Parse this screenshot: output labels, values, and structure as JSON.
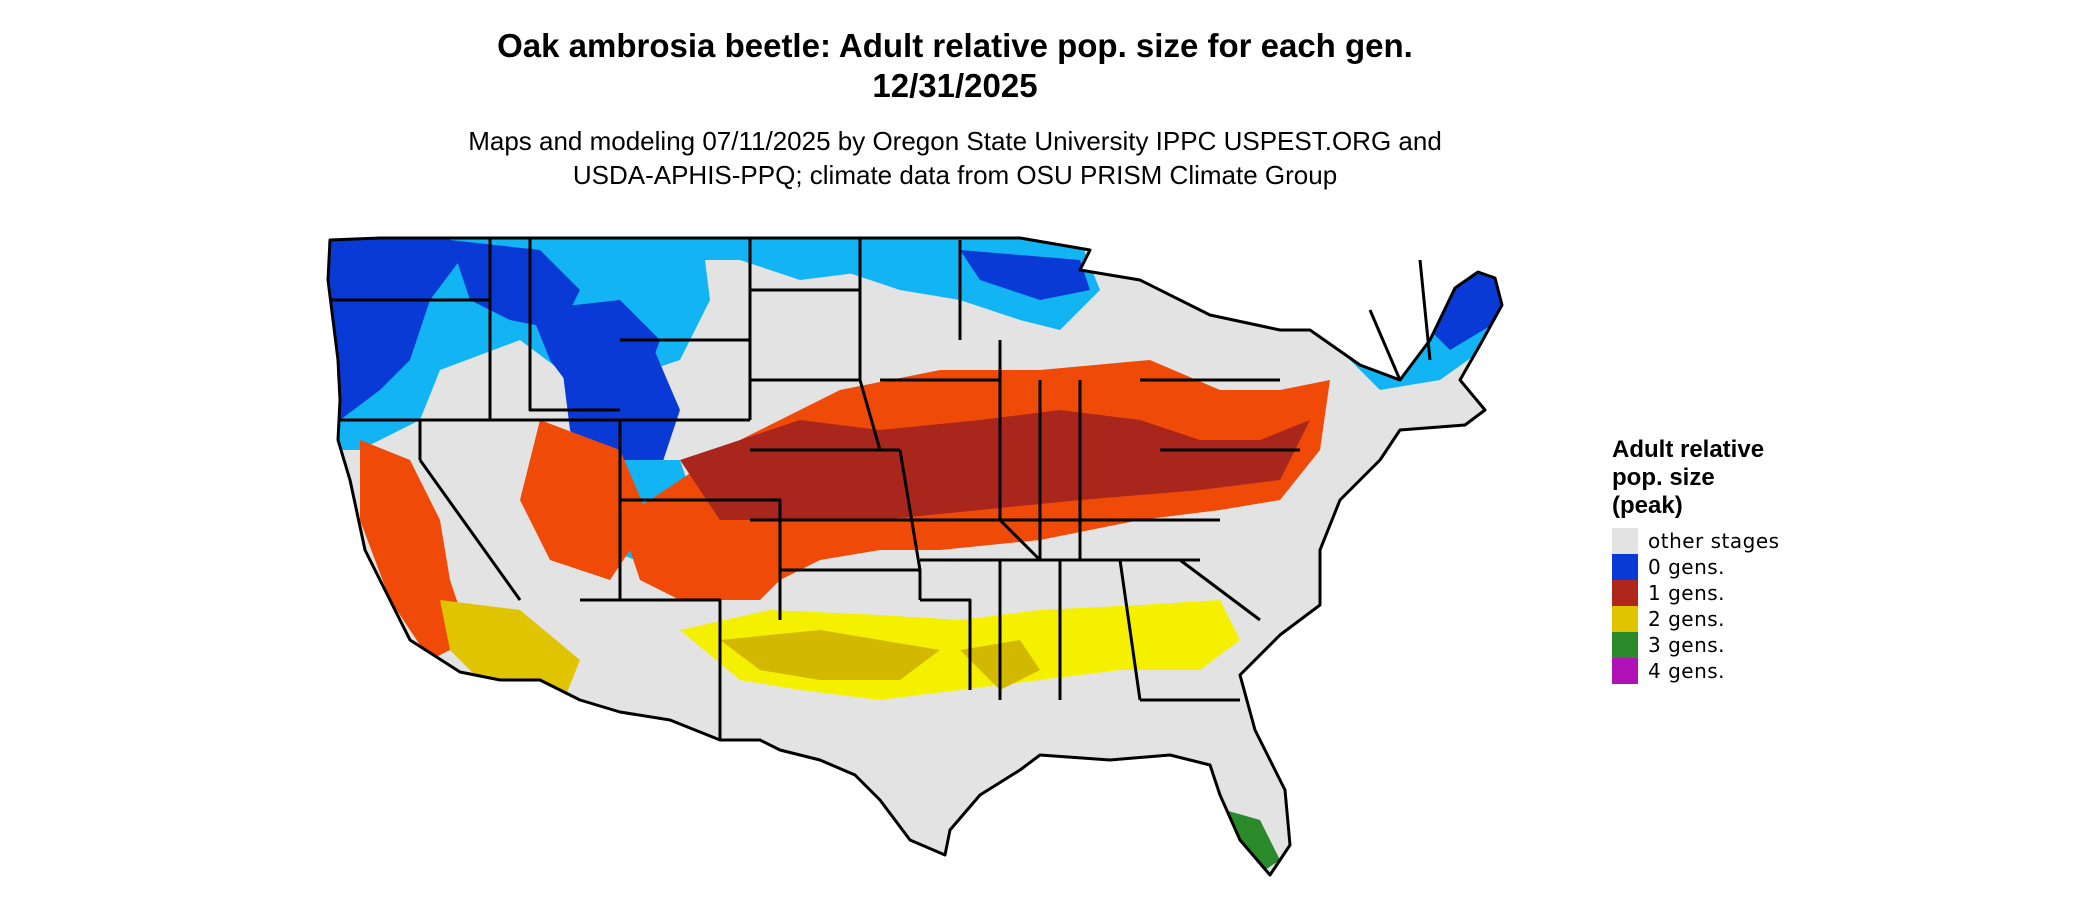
{
  "title_line1": "Oak ambrosia beetle: Adult relative pop. size for each gen.",
  "title_line2": "12/31/2025",
  "subtitle_line1": "Maps and modeling 07/11/2025 by Oregon State University IPPC USPEST.ORG and",
  "subtitle_line2": "USDA-APHIS-PPQ; climate data from OSU PRISM Climate Group",
  "legend": {
    "title_lines": [
      "Adult relative",
      "pop. size",
      "(peak)"
    ],
    "items": [
      {
        "label": "other stages",
        "color": "#e3e3e3"
      },
      {
        "label": "0 gens.",
        "color": "#0a3ad6"
      },
      {
        "label": "1 gens.",
        "color": "#b0261a"
      },
      {
        "label": "2 gens.",
        "color": "#e0c400"
      },
      {
        "label": "3 gens.",
        "color": "#2a8a2a"
      },
      {
        "label": "4 gens.",
        "color": "#b012b8"
      }
    ]
  },
  "map_colors": {
    "land": "#e3e3e3",
    "cold_light": "#13b4f4",
    "cold_dark": "#0a3ad6",
    "warm_orange": "#f04a08",
    "warm_dark": "#a8261c",
    "yellow": "#f5f000",
    "yellow_dark": "#d2b800",
    "green": "#2a8a2a",
    "border": "#000000"
  }
}
